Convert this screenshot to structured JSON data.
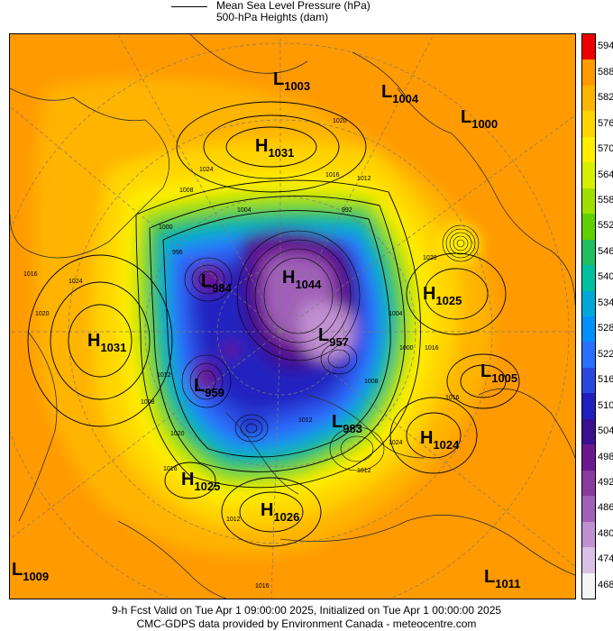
{
  "legend": {
    "line1": "Mean Sea Level Pressure (hPa)",
    "line2": "500-hPa Heights (dam)"
  },
  "colorbar": {
    "labels": [
      "594",
      "588",
      "582",
      "576",
      "570",
      "564",
      "558",
      "552",
      "546",
      "540",
      "534",
      "528",
      "522",
      "516",
      "510",
      "504",
      "498",
      "492",
      "486",
      "480",
      "474",
      "468"
    ],
    "colors": [
      "#ee0000",
      "#ff9a00",
      "#ffb400",
      "#ffd400",
      "#ffee00",
      "#d8f000",
      "#a0e000",
      "#60d000",
      "#20c060",
      "#00c0a0",
      "#00a8d8",
      "#0090ff",
      "#2a70ff",
      "#2a48e0",
      "#2020c0",
      "#3a1090",
      "#6a1890",
      "#8a3aa0",
      "#a060b8",
      "#c090d0",
      "#dac0e6",
      "#f5f5f5"
    ]
  },
  "centers": [
    {
      "type": "L",
      "value": "1003"
    },
    {
      "type": "L",
      "value": "1004"
    },
    {
      "type": "L",
      "value": "1000"
    },
    {
      "type": "H",
      "value": "1031"
    },
    {
      "type": "H",
      "value": "1044"
    },
    {
      "type": "L",
      "value": "984"
    },
    {
      "type": "H",
      "value": "1031"
    },
    {
      "type": "H",
      "value": "1025"
    },
    {
      "type": "L",
      "value": "957"
    },
    {
      "type": "L",
      "value": "1005"
    },
    {
      "type": "L",
      "value": "959"
    },
    {
      "type": "L",
      "value": "983"
    },
    {
      "type": "H",
      "value": "1024"
    },
    {
      "type": "H",
      "value": "1025"
    },
    {
      "type": "H",
      "value": "1026"
    },
    {
      "type": "L",
      "value": "1009"
    },
    {
      "type": "L",
      "value": "1011"
    }
  ],
  "contour_labels": [
    "1020",
    "1024",
    "1016",
    "1012",
    "1008",
    "1004",
    "1000",
    "996",
    "992",
    "1020",
    "1024",
    "1016",
    "1012",
    "1008",
    "1004",
    "1000",
    "1016",
    "1012",
    "1008",
    "1020",
    "1016",
    "1024",
    "1020",
    "1012",
    "1016",
    "1012",
    "1016"
  ],
  "footer": {
    "line1": "9-h Fcst Valid on Tue Apr  1 09:00:00 2025, Initialized on Tue Apr  1 00:00:00 2025",
    "line2": "CMC-GDPS data provided by Environment Canada - meteocentre.com"
  }
}
